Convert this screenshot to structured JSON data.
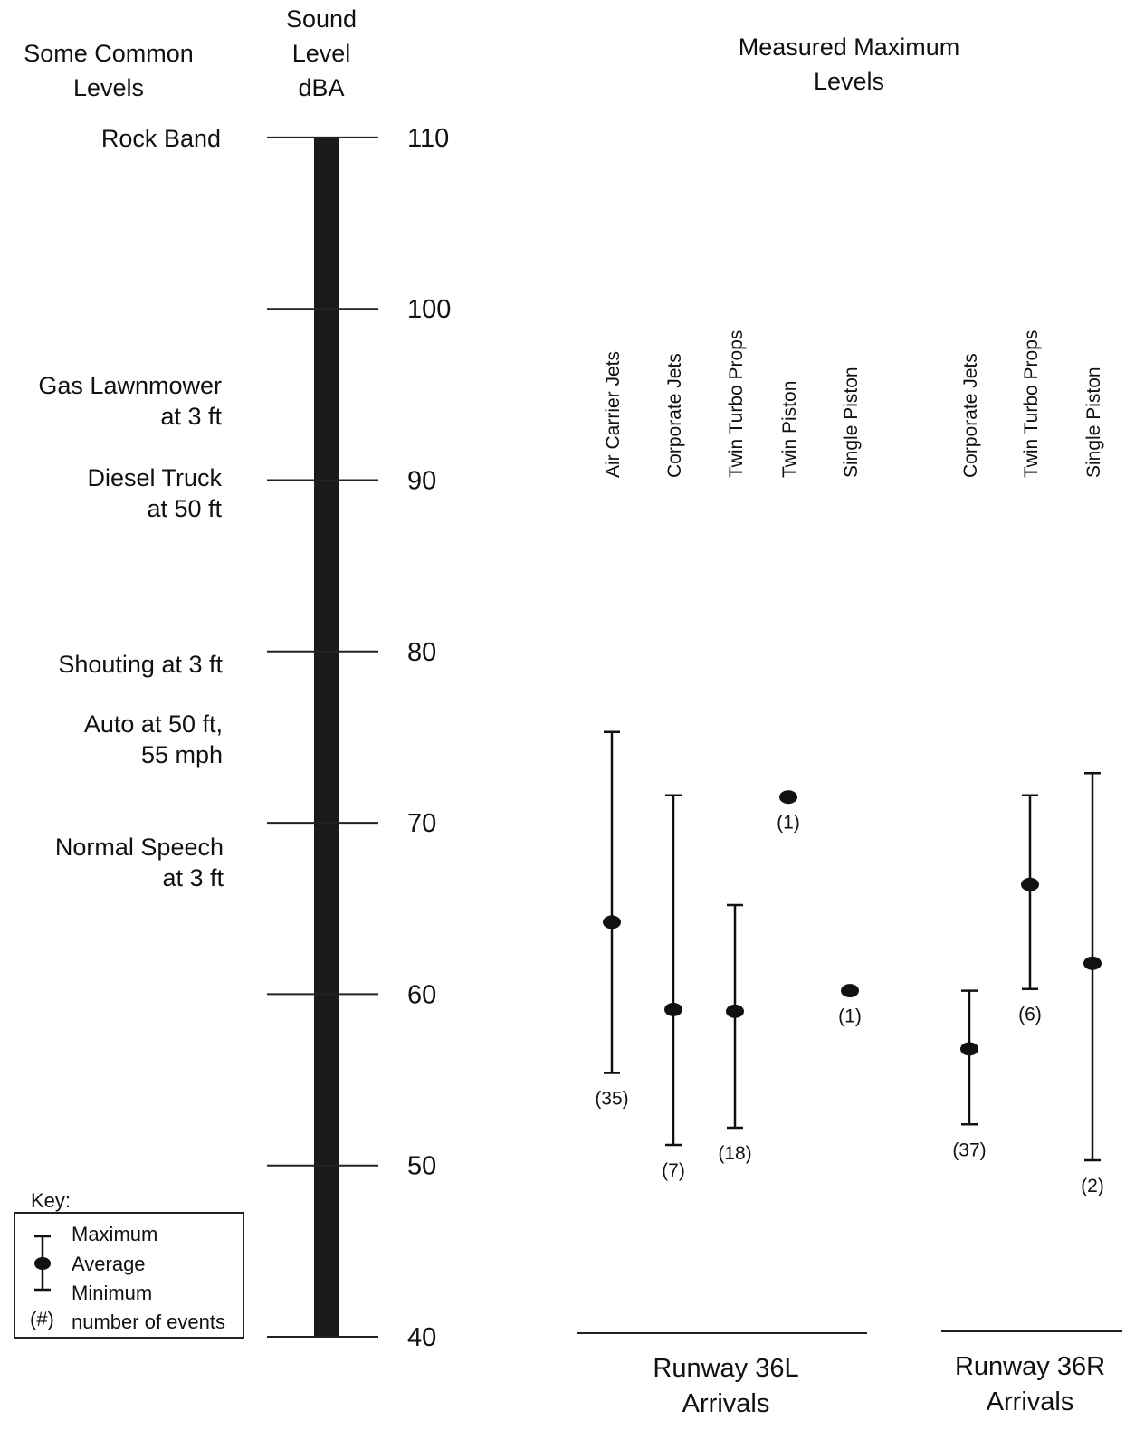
{
  "headers": {
    "common_levels": [
      "Some Common",
      "Levels"
    ],
    "sound_level": [
      "Sound",
      "Level",
      "dBA"
    ],
    "measured": [
      "Measured Maximum",
      "Levels"
    ]
  },
  "common_levels": [
    {
      "lines": [
        "Rock Band"
      ],
      "value": 110
    },
    {
      "lines": [
        "Gas Lawnmower",
        "at 3 ft"
      ],
      "value": 95
    },
    {
      "lines": [
        "Diesel Truck",
        "at 50 ft"
      ],
      "value": 90
    },
    {
      "lines": [
        "Shouting at 3 ft"
      ],
      "value": 80
    },
    {
      "lines": [
        "Auto at 50 ft,",
        "55 mph"
      ],
      "value": 76
    },
    {
      "lines": [
        "Normal Speech",
        "at 3 ft"
      ],
      "value": 69
    }
  ],
  "key": {
    "title": "Key:",
    "items": [
      "Maximum",
      "Average",
      "Minimum"
    ],
    "events_symbol": "(#)",
    "events_label": "number of events"
  },
  "chart_data": {
    "type": "scatter",
    "ylabel": "Sound Level dBA",
    "ylim": [
      40,
      110
    ],
    "yticks": [
      110,
      100,
      90,
      80,
      70,
      60,
      50,
      40
    ],
    "groups": [
      {
        "label": [
          "Runway 36L",
          "Arrivals"
        ],
        "series": [
          {
            "name": "Air Carrier Jets",
            "max": 75.3,
            "avg": 64.2,
            "min": 55.4,
            "events": "(35)"
          },
          {
            "name": "Corporate Jets",
            "max": 71.6,
            "avg": 59.1,
            "min": 51.2,
            "events": "(7)"
          },
          {
            "name": "Twin Turbo Props",
            "max": 65.2,
            "avg": 59.0,
            "min": 52.2,
            "events": "(18)"
          },
          {
            "name": "Twin Piston",
            "max": null,
            "avg": 71.5,
            "min": null,
            "events": "(1)"
          },
          {
            "name": "Single Piston",
            "max": null,
            "avg": 60.2,
            "min": null,
            "events": "(1)"
          }
        ]
      },
      {
        "label": [
          "Runway 36R",
          "Arrivals"
        ],
        "series": [
          {
            "name": "Corporate Jets",
            "max": 60.2,
            "avg": 56.8,
            "min": 52.4,
            "events": "(37)"
          },
          {
            "name": "Twin Turbo Props",
            "max": 71.6,
            "avg": 66.4,
            "min": 60.3,
            "events": "(6)"
          },
          {
            "name": "Single Piston",
            "max": 72.9,
            "avg": 61.8,
            "min": 50.3,
            "events": "(2)"
          }
        ]
      }
    ]
  }
}
